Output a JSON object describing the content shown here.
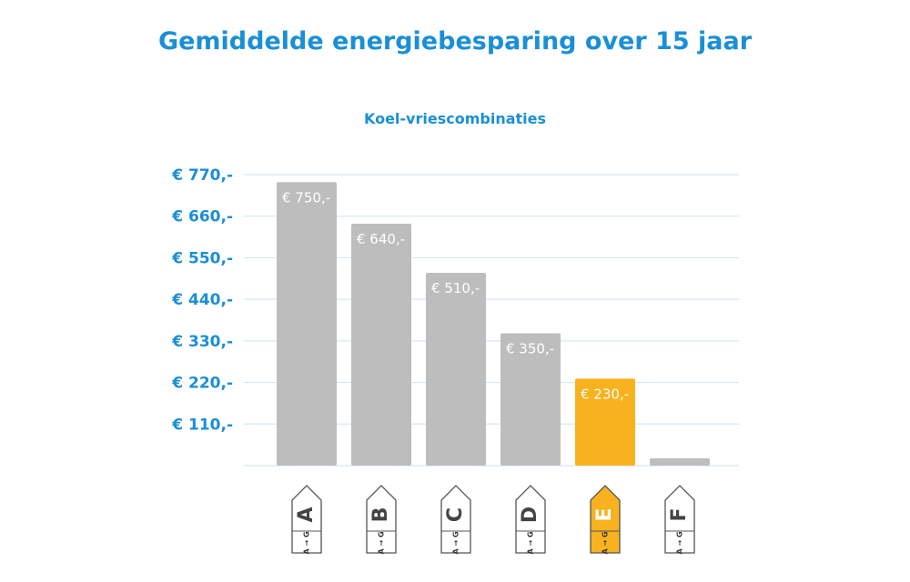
{
  "chart_data": {
    "type": "bar",
    "title": "Gemiddelde energiebesparing over 15 jaar",
    "subtitle": "Koel-vriescombinaties",
    "categories": [
      "A",
      "B",
      "C",
      "D",
      "E",
      "F"
    ],
    "values": [
      750,
      640,
      510,
      350,
      230,
      0
    ],
    "data_labels": [
      "€ 750,-",
      "€ 640,-",
      "€ 510,-",
      "€ 350,-",
      "€ 230,-",
      ""
    ],
    "yticks": [
      110,
      220,
      330,
      440,
      550,
      660,
      770
    ],
    "ytick_labels": [
      "€ 110,-",
      "€ 220,-",
      "€ 330,-",
      "€ 440,-",
      "€ 550,-",
      "€ 660,-",
      "€ 770,-"
    ],
    "ylim": [
      0,
      770
    ],
    "grid": true,
    "highlight_category": "E",
    "label_scale_text": "A → G",
    "colors": {
      "title": "#1a8fd6",
      "axis_text": "#1a8fd6",
      "bar": "#bdbdbd",
      "highlight": "#f7b21e",
      "grid": "#d6e8f5",
      "data_label": "#ffffff",
      "label_stroke": "#555555"
    }
  }
}
